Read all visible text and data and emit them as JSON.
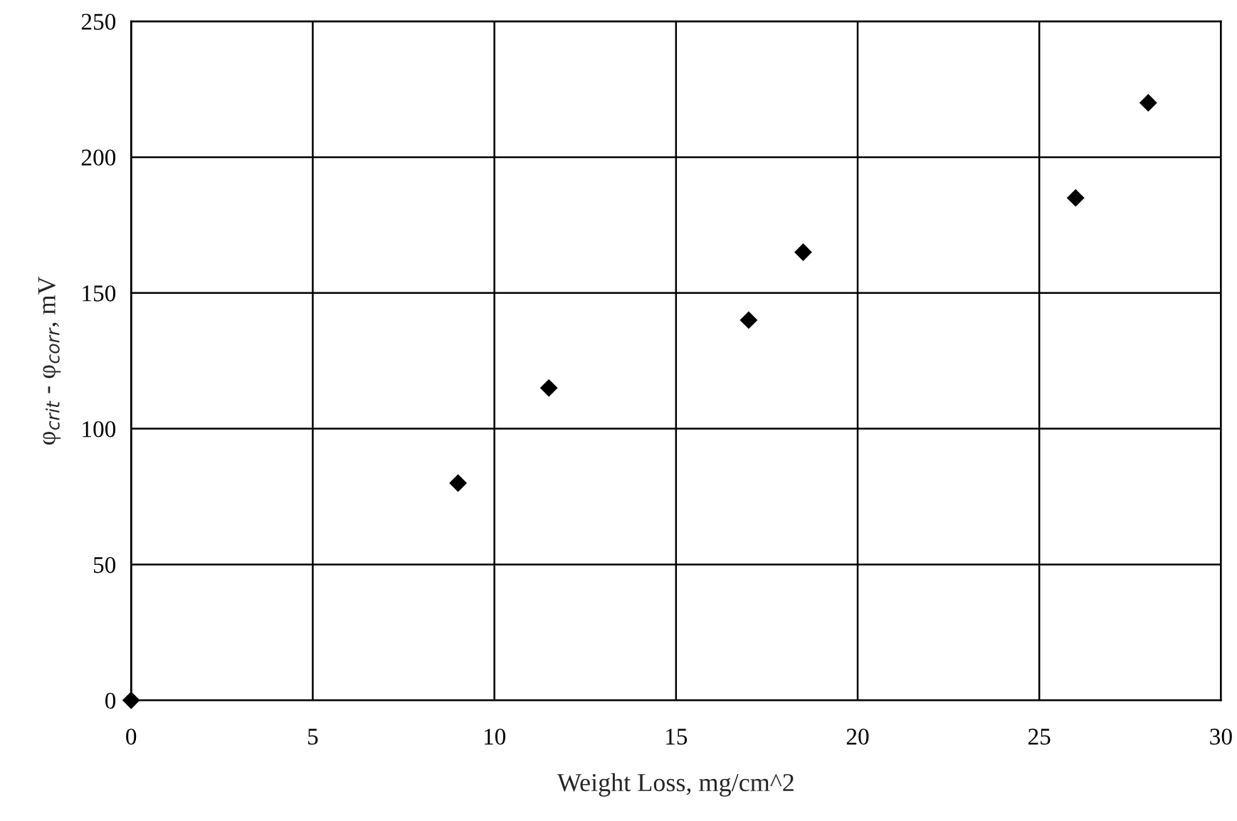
{
  "chart_data": {
    "type": "scatter",
    "xlabel": "Weight Loss, mg/cm^2",
    "ylabel": "φ$_{crit}$ - φ$_{corr}$, mV",
    "x": [
      0,
      9,
      11.5,
      17,
      18.5,
      26,
      28
    ],
    "values": [
      0,
      80,
      115,
      140,
      165,
      185,
      220
    ],
    "color": "#000000",
    "marker": "diamond",
    "xlim": [
      0,
      30
    ],
    "xticks": [
      0,
      5,
      10,
      15,
      20,
      25,
      30
    ],
    "ylim": [
      0,
      250
    ],
    "yticks": [
      0,
      50,
      100,
      150,
      200,
      250
    ],
    "grid": true
  }
}
